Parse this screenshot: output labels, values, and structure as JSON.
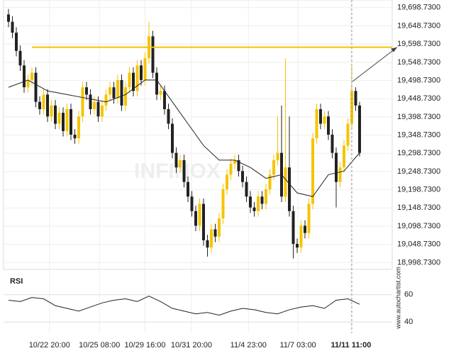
{
  "chart_data": {
    "type": "candlestick",
    "ohlc": [
      [
        19680,
        19695,
        19645,
        19660
      ],
      [
        19660,
        19675,
        19615,
        19630
      ],
      [
        19630,
        19645,
        19565,
        19580
      ],
      [
        19580,
        19595,
        19525,
        19540
      ],
      [
        19540,
        19555,
        19465,
        19480
      ],
      [
        19480,
        19515,
        19465,
        19500
      ],
      [
        19500,
        19535,
        19485,
        19520
      ],
      [
        19520,
        19535,
        19425,
        19440
      ],
      [
        19440,
        19455,
        19405,
        19420
      ],
      [
        19420,
        19475,
        19405,
        19460
      ],
      [
        19460,
        19475,
        19385,
        19400
      ],
      [
        19400,
        19445,
        19385,
        19430
      ],
      [
        19430,
        19445,
        19365,
        19380
      ],
      [
        19380,
        19425,
        19365,
        19410
      ],
      [
        19410,
        19425,
        19345,
        19360
      ],
      [
        19360,
        19435,
        19345,
        19420
      ],
      [
        19420,
        19435,
        19335,
        19350
      ],
      [
        19350,
        19365,
        19325,
        19340
      ],
      [
        19340,
        19415,
        19325,
        19400
      ],
      [
        19400,
        19495,
        19385,
        19480
      ],
      [
        19480,
        19495,
        19445,
        19460
      ],
      [
        19460,
        19475,
        19405,
        19420
      ],
      [
        19420,
        19455,
        19405,
        19440
      ],
      [
        19440,
        19455,
        19385,
        19400
      ],
      [
        19400,
        19445,
        19385,
        19430
      ],
      [
        19430,
        19475,
        19415,
        19460
      ],
      [
        19460,
        19495,
        19445,
        19480
      ],
      [
        19480,
        19495,
        19435,
        19450
      ],
      [
        19450,
        19515,
        19435,
        19500
      ],
      [
        19500,
        19515,
        19415,
        19430
      ],
      [
        19430,
        19495,
        19415,
        19480
      ],
      [
        19480,
        19535,
        19465,
        19520
      ],
      [
        19520,
        19535,
        19455,
        19470
      ],
      [
        19470,
        19555,
        19455,
        19540
      ],
      [
        19540,
        19555,
        19485,
        19500
      ],
      [
        19500,
        19575,
        19485,
        19560
      ],
      [
        19560,
        19660,
        19545,
        19620
      ],
      [
        19620,
        19635,
        19505,
        19520
      ],
      [
        19520,
        19535,
        19445,
        19460
      ],
      [
        19460,
        19485,
        19445,
        19470
      ],
      [
        19470,
        19485,
        19405,
        19420
      ],
      [
        19420,
        19435,
        19365,
        19380
      ],
      [
        19380,
        19395,
        19285,
        19300
      ],
      [
        19300,
        19315,
        19245,
        19260
      ],
      [
        19260,
        19295,
        19245,
        19280
      ],
      [
        19280,
        19295,
        19205,
        19220
      ],
      [
        19220,
        19235,
        19165,
        19180
      ],
      [
        19180,
        19195,
        19125,
        19140
      ],
      [
        19140,
        19155,
        19085,
        19100
      ],
      [
        19100,
        19175,
        19085,
        19160
      ],
      [
        19160,
        19175,
        19045,
        19060
      ],
      [
        19060,
        19075,
        19015,
        19040
      ],
      [
        19040,
        19105,
        19025,
        19090
      ],
      [
        19090,
        19105,
        19055,
        19070
      ],
      [
        19070,
        19135,
        19055,
        19120
      ],
      [
        19120,
        19215,
        19105,
        19200
      ],
      [
        19200,
        19255,
        19185,
        19240
      ],
      [
        19240,
        19285,
        19225,
        19270
      ],
      [
        19270,
        19295,
        19255,
        19280
      ],
      [
        19280,
        19295,
        19235,
        19250
      ],
      [
        19250,
        19265,
        19205,
        19220
      ],
      [
        19220,
        19235,
        19165,
        19180
      ],
      [
        19180,
        19195,
        19135,
        19150
      ],
      [
        19150,
        19165,
        19125,
        19140
      ],
      [
        19140,
        19195,
        19125,
        19180
      ],
      [
        19180,
        19195,
        19145,
        19160
      ],
      [
        19160,
        19215,
        19145,
        19200
      ],
      [
        19200,
        19255,
        19185,
        19240
      ],
      [
        19240,
        19295,
        19225,
        19280
      ],
      [
        19280,
        19400,
        19265,
        19300
      ],
      [
        19300,
        19430,
        19165,
        19180
      ],
      [
        19180,
        19560,
        19165,
        19260
      ],
      [
        19260,
        19400,
        19125,
        19140
      ],
      [
        19140,
        19155,
        19010,
        19050
      ],
      [
        19050,
        19065,
        19025,
        19040
      ],
      [
        19040,
        19115,
        19025,
        19100
      ],
      [
        19100,
        19115,
        19065,
        19080
      ],
      [
        19080,
        19175,
        19065,
        19160
      ],
      [
        19160,
        19355,
        19145,
        19340
      ],
      [
        19340,
        19435,
        19325,
        19420
      ],
      [
        19420,
        19435,
        19365,
        19380
      ],
      [
        19380,
        19415,
        19365,
        19400
      ],
      [
        19400,
        19415,
        19335,
        19350
      ],
      [
        19350,
        19365,
        19285,
        19300
      ],
      [
        19300,
        19315,
        19150,
        19220
      ],
      [
        19220,
        19275,
        19205,
        19260
      ],
      [
        19260,
        19335,
        19245,
        19320
      ],
      [
        19320,
        19395,
        19305,
        19380
      ],
      [
        19380,
        19540,
        19365,
        19470
      ],
      [
        19470,
        19480,
        19415,
        19430
      ],
      [
        19430,
        19440,
        19290,
        19300
      ]
    ],
    "up_color": "#f5c400",
    "down_color": "#222222",
    "moving_average": {
      "x": [
        0,
        5,
        10,
        15,
        20,
        25,
        30,
        35,
        38,
        42,
        46,
        50,
        54,
        58,
        62,
        66,
        70,
        74,
        78,
        82,
        86,
        90
      ],
      "values": [
        19480,
        19500,
        19470,
        19460,
        19450,
        19440,
        19460,
        19500,
        19500,
        19440,
        19380,
        19320,
        19280,
        19280,
        19260,
        19230,
        19240,
        19190,
        19180,
        19240,
        19250,
        19300
      ]
    },
    "level": 19590,
    "level_color": "#f5c400",
    "ylim": [
      18980,
      19710
    ],
    "yticks": [
      {
        "value": 19698.73,
        "label": "19,698.7300"
      },
      {
        "value": 19648.73,
        "label": "19,648.7300"
      },
      {
        "value": 19598.73,
        "label": "19,598.7300"
      },
      {
        "value": 19548.73,
        "label": "19,548.7300"
      },
      {
        "value": 19498.73,
        "label": "19,498.7300"
      },
      {
        "value": 19448.73,
        "label": "19,448.7300"
      },
      {
        "value": 19398.73,
        "label": "19,398.7300"
      },
      {
        "value": 19348.73,
        "label": "19,348.7300"
      },
      {
        "value": 19298.73,
        "label": "19,298.7300"
      },
      {
        "value": 19248.73,
        "label": "19,248.7300"
      },
      {
        "value": 19198.73,
        "label": "19,198.7300"
      },
      {
        "value": 19148.73,
        "label": "19,148.7300"
      },
      {
        "value": 19098.73,
        "label": "19,098.7300"
      },
      {
        "value": 19048.73,
        "label": "19,048.7300"
      },
      {
        "value": 18998.73,
        "label": "18,998.7300"
      }
    ],
    "xlim": [
      -1,
      97
    ],
    "xticks": [
      {
        "value": 10.5,
        "label": "10/22 20:00"
      },
      {
        "value": 23.3,
        "label": "10/25 08:00"
      },
      {
        "value": 35,
        "label": "10/29 16:00"
      },
      {
        "value": 46.9,
        "label": "10/31 20:00"
      },
      {
        "value": 61.5,
        "label": "11/4 23:00"
      },
      {
        "value": 74.2,
        "label": "11/7 03:00"
      },
      {
        "value": 87.8,
        "label": "11/11 11:00"
      }
    ],
    "rsi": {
      "title": "RSI",
      "x": [
        0,
        3,
        6,
        9,
        12,
        15,
        18,
        21,
        24,
        27,
        30,
        33,
        36,
        39,
        42,
        45,
        48,
        51,
        54,
        57,
        60,
        63,
        66,
        69,
        72,
        75,
        78,
        81,
        84,
        87,
        90
      ],
      "values": [
        56,
        55,
        58,
        57,
        52,
        50,
        48,
        51,
        54,
        56,
        57,
        55,
        59,
        55,
        50,
        48,
        46,
        47,
        45,
        48,
        50,
        49,
        47,
        46,
        49,
        51,
        52,
        50,
        56,
        57,
        53
      ],
      "ylim": [
        37,
        63
      ],
      "yticks": [
        60,
        40
      ]
    },
    "watermark": "INFINOX",
    "source": "www.autochartist.com"
  }
}
